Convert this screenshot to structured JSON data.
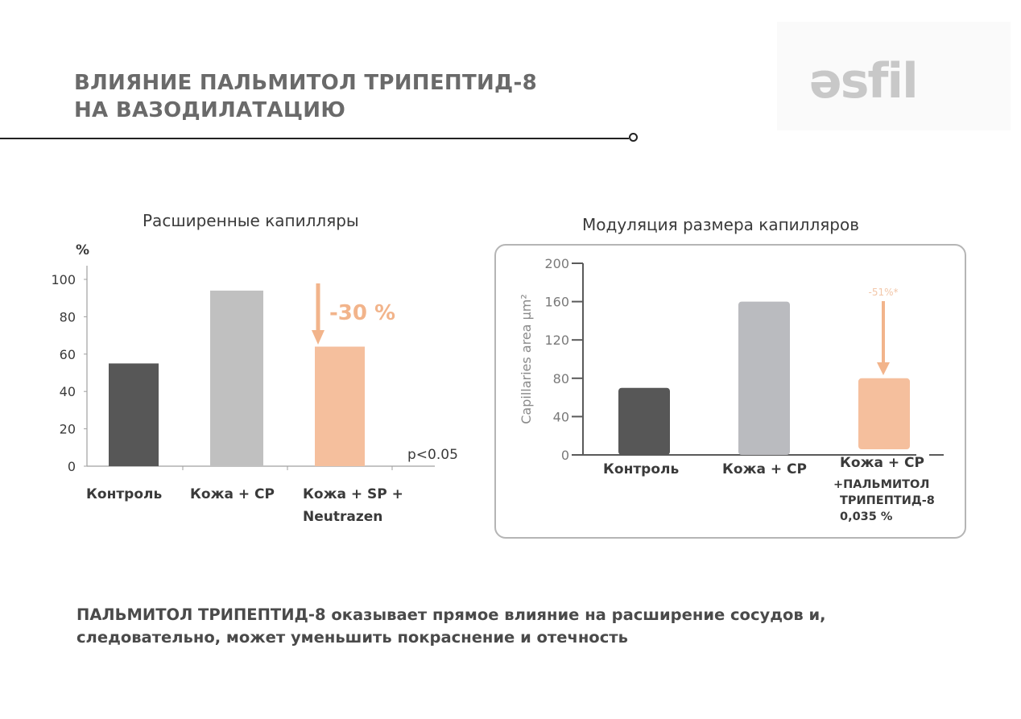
{
  "header": {
    "title_lines": [
      "ВЛИЯНИЕ ПАЛЬМИТОЛ ТРИПЕПТИД-8",
      "НА ВАЗОДИЛАТАЦИЮ"
    ],
    "logo_text": "əsfil"
  },
  "colors": {
    "dark": "#575757",
    "grey": "#c0c0c0",
    "grey_right": "#babbbf",
    "peach": "#f5bf9d",
    "annotation": "#f2b48b"
  },
  "chart_data": [
    {
      "type": "bar",
      "title": "Расширенные капилляры",
      "ylabel": "%",
      "xlabel": "",
      "ylim": [
        0,
        100
      ],
      "yticks": [
        "0",
        "20",
        "40",
        "60",
        "80",
        "100"
      ],
      "categories": [
        [
          "Контроль"
        ],
        [
          "Кожа + CP"
        ],
        [
          "Кожа + SP +",
          "Neutrazen"
        ]
      ],
      "values": [
        55,
        94,
        64
      ],
      "annotation": "-30 %",
      "note": "p<0.05",
      "grid": false
    },
    {
      "type": "bar",
      "title": "Модуляция размера капилляров",
      "ylabel": "Capillaries area µm²",
      "xlabel": "",
      "ylim": [
        0,
        200
      ],
      "yticks": [
        "0",
        "40",
        "80",
        "120",
        "160",
        "200"
      ],
      "categories": [
        [
          "Контроль"
        ],
        [
          "Кожа + CP"
        ],
        [
          "Кожа + CP",
          "+ПАЛЬМИТОЛ",
          "ТРИПЕПТИД-8",
          "0,035 %"
        ]
      ],
      "values": [
        70,
        160,
        80
      ],
      "annotation": "-51%*",
      "grid": false
    }
  ],
  "footer": {
    "lines": [
      "ПАЛЬМИТОЛ ТРИПЕПТИД-8 оказывает прямое влияние на расширение сосудов и,",
      "следовательно, может уменьшить покраснение и отечность"
    ]
  }
}
